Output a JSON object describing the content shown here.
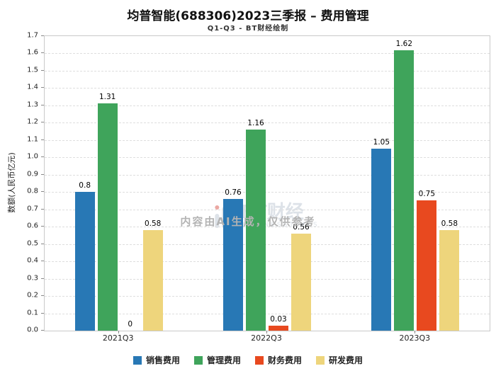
{
  "title": "均普智能(688306)2023三季报 – 费用管理",
  "subtitle": "Q1-Q3 - BT财经绘制",
  "watermark": {
    "brand": "BT财经",
    "brand_sub": "BUSINESSTIMES",
    "notice": "内容由AI生成，仅供参考"
  },
  "chart_data": {
    "type": "bar",
    "categories": [
      "2021Q3",
      "2022Q3",
      "2023Q3"
    ],
    "series": [
      {
        "name": "销售费用",
        "color": "#2878b5",
        "values": [
          0.8,
          0.76,
          1.05
        ]
      },
      {
        "name": "管理费用",
        "color": "#3fa45b",
        "values": [
          1.31,
          1.16,
          1.62
        ]
      },
      {
        "name": "财务费用",
        "color": "#e8491f",
        "values": [
          0,
          0.03,
          0.75
        ]
      },
      {
        "name": "研发费用",
        "color": "#eed57c",
        "values": [
          0.58,
          0.56,
          0.58
        ]
      }
    ],
    "title": "均普智能(688306)2023三季报 – 费用管理",
    "xlabel": "",
    "ylabel": "数额(人民币亿元)",
    "ylim": [
      0,
      1.7
    ],
    "ytick_step": 0.1,
    "grid": true,
    "legend_position": "bottom"
  }
}
